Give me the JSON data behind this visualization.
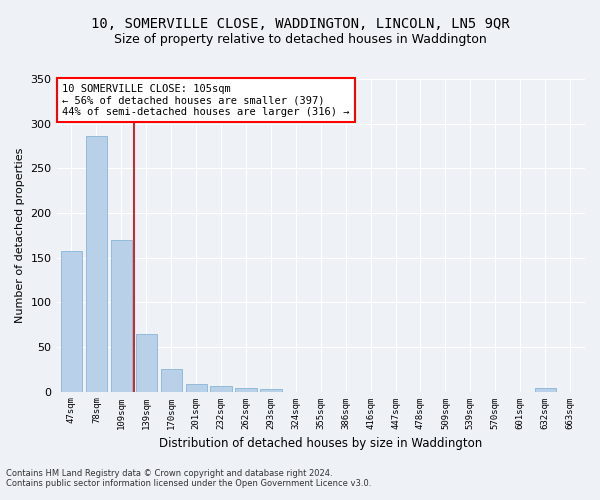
{
  "title": "10, SOMERVILLE CLOSE, WADDINGTON, LINCOLN, LN5 9QR",
  "subtitle": "Size of property relative to detached houses in Waddington",
  "xlabel": "Distribution of detached houses by size in Waddington",
  "ylabel": "Number of detached properties",
  "categories": [
    "47sqm",
    "78sqm",
    "109sqm",
    "139sqm",
    "170sqm",
    "201sqm",
    "232sqm",
    "262sqm",
    "293sqm",
    "324sqm",
    "355sqm",
    "386sqm",
    "416sqm",
    "447sqm",
    "478sqm",
    "509sqm",
    "539sqm",
    "570sqm",
    "601sqm",
    "632sqm",
    "663sqm"
  ],
  "values": [
    157,
    286,
    170,
    65,
    25,
    9,
    6,
    4,
    3,
    0,
    0,
    0,
    0,
    0,
    0,
    0,
    0,
    0,
    0,
    4,
    0
  ],
  "bar_color": "#b8d0e8",
  "bar_edge_color": "#7aacd0",
  "vline_color": "#cc0000",
  "annotation_box_text": "10 SOMERVILLE CLOSE: 105sqm\n← 56% of detached houses are smaller (397)\n44% of semi-detached houses are larger (316) →",
  "box_edge_color": "red",
  "footer_line1": "Contains HM Land Registry data © Crown copyright and database right 2024.",
  "footer_line2": "Contains public sector information licensed under the Open Government Licence v3.0.",
  "ylim": [
    0,
    350
  ],
  "yticks": [
    0,
    50,
    100,
    150,
    200,
    250,
    300,
    350
  ],
  "background_color": "#eef2f7",
  "grid_color": "#ffffff",
  "title_fontsize": 10,
  "subtitle_fontsize": 9,
  "xlabel_fontsize": 8.5,
  "ylabel_fontsize": 8,
  "bar_width": 0.85
}
